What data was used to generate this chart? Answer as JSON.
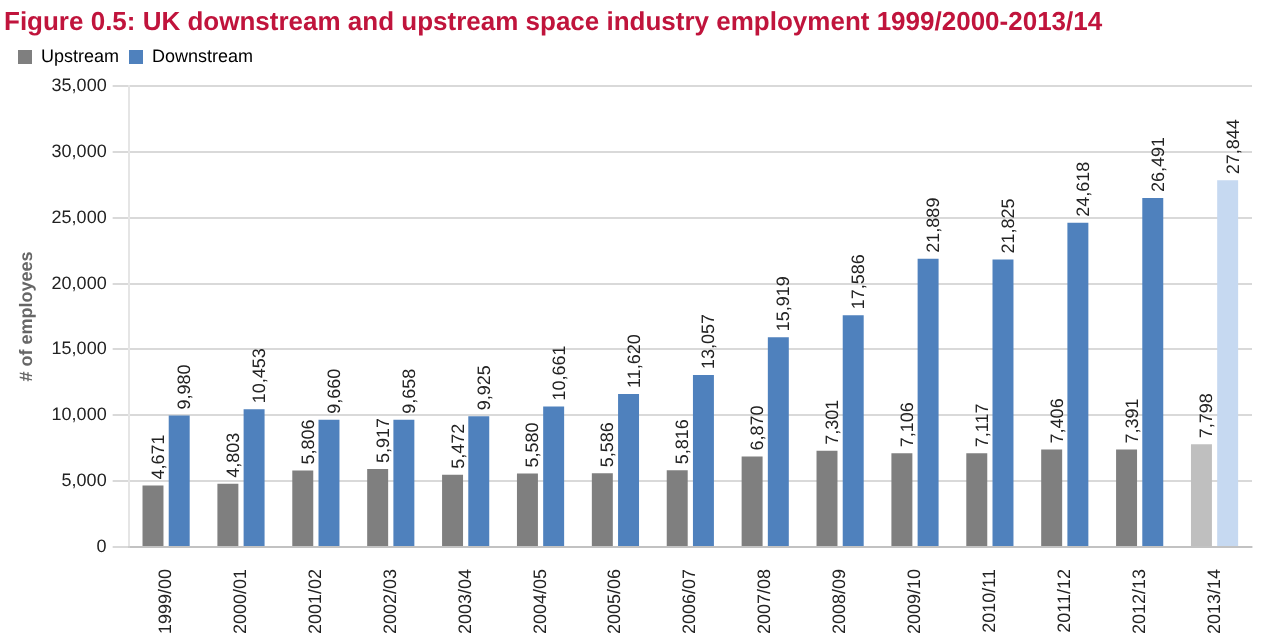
{
  "chart_data": {
    "type": "bar",
    "title": "Figure 0.5: UK downstream and upstream space industry employment 1999/2000-2013/14",
    "ylabel": "# of employees",
    "categories": [
      "1999/00",
      "2000/01",
      "2001/02",
      "2002/03",
      "2003/04",
      "2004/05",
      "2005/06",
      "2006/07",
      "2007/08",
      "2008/09",
      "2009/10",
      "2010/11",
      "2011/12",
      "2012/13",
      "2013/14"
    ],
    "series": [
      {
        "name": "Upstream",
        "color": "#7f7f7f",
        "colors": [
          "#7f7f7f",
          "#7f7f7f",
          "#7f7f7f",
          "#7f7f7f",
          "#7f7f7f",
          "#7f7f7f",
          "#7f7f7f",
          "#7f7f7f",
          "#7f7f7f",
          "#7f7f7f",
          "#7f7f7f",
          "#7f7f7f",
          "#7f7f7f",
          "#7f7f7f",
          "#bfbfbf"
        ],
        "values": [
          4671,
          4803,
          5806,
          5917,
          5472,
          5580,
          5586,
          5816,
          6870,
          7301,
          7106,
          7117,
          7406,
          7391,
          7798
        ],
        "value_labels": [
          "4,671",
          "4,803",
          "5,806",
          "5,917",
          "5,472",
          "5,580",
          "5,586",
          "5,816",
          "6,870",
          "7,301",
          "7,106",
          "7,117",
          "7,406",
          "7,391",
          "7,798"
        ]
      },
      {
        "name": "Downstream",
        "color": "#4f81bd",
        "colors": [
          "#4f81bd",
          "#4f81bd",
          "#4f81bd",
          "#4f81bd",
          "#4f81bd",
          "#4f81bd",
          "#4f81bd",
          "#4f81bd",
          "#4f81bd",
          "#4f81bd",
          "#4f81bd",
          "#4f81bd",
          "#4f81bd",
          "#4f81bd",
          "#c6d9f1"
        ],
        "values": [
          9980,
          10453,
          9660,
          9658,
          9925,
          10661,
          11620,
          13057,
          15919,
          17586,
          21889,
          21825,
          24618,
          26491,
          27844
        ],
        "value_labels": [
          "9,980",
          "10,453",
          "9,660",
          "9,658",
          "9,925",
          "10,661",
          "11,620",
          "13,057",
          "15,919",
          "17,586",
          "21,889",
          "21,825",
          "24,618",
          "26,491",
          "27,844"
        ]
      }
    ],
    "ylim": [
      0,
      35000
    ],
    "yticks": [
      {
        "value": 0,
        "label": "0"
      },
      {
        "value": 5000,
        "label": "5,000"
      },
      {
        "value": 10000,
        "label": "10,000"
      },
      {
        "value": 15000,
        "label": "15,000"
      },
      {
        "value": 20000,
        "label": "20,000"
      },
      {
        "value": 25000,
        "label": "25,000"
      },
      {
        "value": 30000,
        "label": "30,000"
      },
      {
        "value": 35000,
        "label": "35,000"
      }
    ],
    "grid": "y",
    "legend": "top left"
  }
}
